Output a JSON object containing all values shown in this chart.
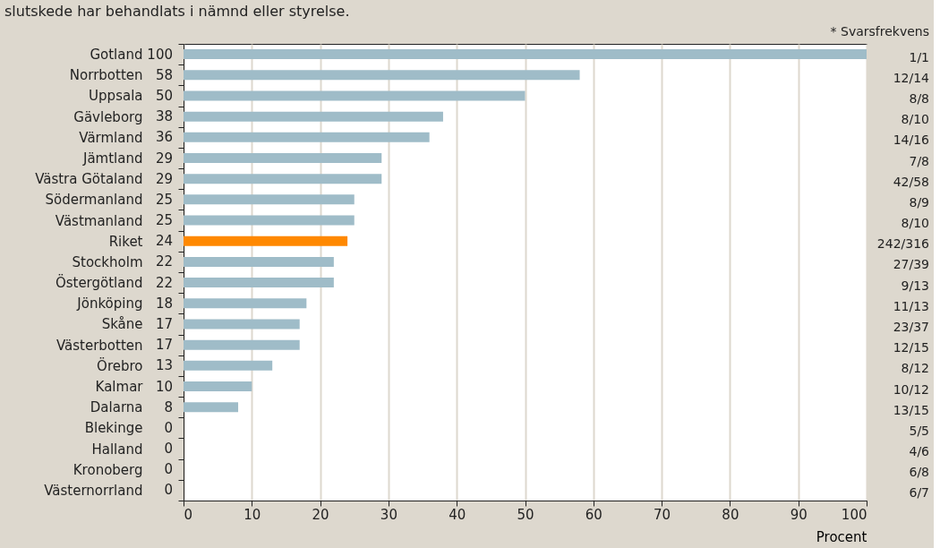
{
  "chart_data": {
    "type": "bar",
    "orientation": "horizontal",
    "title": "slutskede har behandlats i nämnd eller styrelse.",
    "xlabel": "Procent",
    "categories": [
      "Gotland",
      "Norrbotten",
      "Uppsala",
      "Gävleborg",
      "Värmland",
      "Jämtland",
      "Västra Götaland",
      "Södermanland",
      "Västmanland",
      "Riket",
      "Stockholm",
      "Östergötland",
      "Jönköping",
      "Skåne",
      "Västerbotten",
      "Örebro",
      "Kalmar",
      "Dalarna",
      "Blekinge",
      "Halland",
      "Kronoberg",
      "Västernorrland"
    ],
    "values": [
      100,
      58,
      50,
      38,
      36,
      29,
      29,
      25,
      25,
      24,
      22,
      22,
      18,
      17,
      17,
      13,
      10,
      8,
      0,
      0,
      0,
      0
    ],
    "colors": [
      "#9fbcc8",
      "#9fbcc8",
      "#9fbcc8",
      "#9fbcc8",
      "#9fbcc8",
      "#9fbcc8",
      "#9fbcc8",
      "#9fbcc8",
      "#9fbcc8",
      "#ff8800",
      "#9fbcc8",
      "#9fbcc8",
      "#9fbcc8",
      "#9fbcc8",
      "#9fbcc8",
      "#9fbcc8",
      "#9fbcc8",
      "#9fbcc8",
      "#9fbcc8",
      "#9fbcc8",
      "#9fbcc8",
      "#9fbcc8"
    ],
    "data_labels": true,
    "xlim": [
      0,
      100
    ],
    "xticks": [
      0,
      10,
      20,
      30,
      40,
      50,
      60,
      70,
      80,
      90,
      100
    ],
    "grid": "x",
    "annotations": [
      "* Svarsfrekvens",
      "1/1",
      "12/14",
      "8/8",
      "8/10",
      "14/16",
      "7/8",
      "42/58",
      "8/9",
      "8/10",
      "242/316",
      "27/39",
      "9/13",
      "11/13",
      "23/37",
      "12/15",
      "8/12",
      "10/12",
      "13/15",
      "5/5",
      "4/6",
      "6/8",
      "6/7"
    ]
  }
}
